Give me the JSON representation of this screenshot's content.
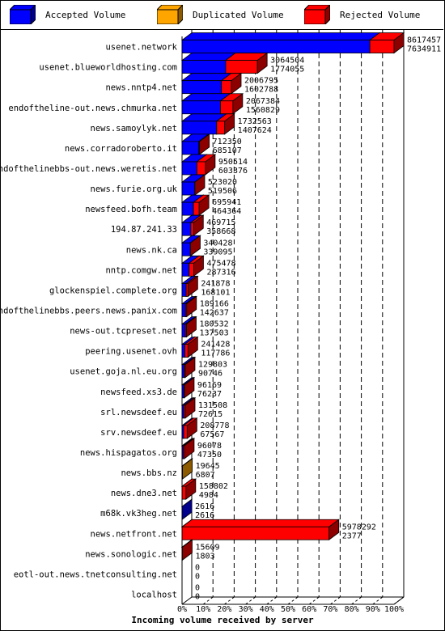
{
  "legend": {
    "accepted_label": "Accepted Volume",
    "duplicated_label": "Duplicated Volume",
    "rejected_label": "Rejected Volume"
  },
  "colors": {
    "accepted": "#0000ff",
    "duplicated": "#ffa500",
    "rejected": "#ff0000",
    "background": "#ffffff",
    "gridline": "#000000"
  },
  "chart_data": {
    "type": "bar",
    "orientation": "horizontal",
    "stacked": true,
    "three_d": true,
    "title": "Incoming volume received by server",
    "xlabel": "Incoming volume received by server",
    "x_ticks": [
      "0%",
      "10%",
      "20%",
      "30%",
      "40%",
      "50%",
      "60%",
      "70%",
      "80%",
      "90%",
      "100%"
    ],
    "xlim": [
      0,
      100
    ],
    "max_total": 8617457,
    "grid": "vertical dashed",
    "legend_position": "top",
    "series": [
      {
        "name": "Accepted Volume",
        "color": "#0000ff"
      },
      {
        "name": "Duplicated Volume",
        "color": "#ffa500"
      },
      {
        "name": "Rejected Volume",
        "color": "#ff0000"
      }
    ],
    "categories": [
      "usenet.network",
      "usenet.blueworldhosting.com",
      "news.nntp4.net",
      "endoftheline-out.news.chmurka.net",
      "news.samoylyk.net",
      "news.corradoroberto.it",
      "endofthelinebbs-out.news.weretis.net",
      "news.furie.org.uk",
      "newsfeed.bofh.team",
      "194.87.241.33",
      "news.nk.ca",
      "nntp.comgw.net",
      "glockenspiel.complete.org",
      "endofthelinebbs.peers.news.panix.com",
      "news-out.tcpreset.net",
      "peering.usenet.ovh",
      "usenet.goja.nl.eu.org",
      "newsfeed.xs3.de",
      "srl.newsdeef.eu",
      "srv.newsdeef.eu",
      "news.hispagatos.org",
      "news.bbs.nz",
      "news.dne3.net",
      "m68k.vk3heg.net",
      "news.netfront.net",
      "news.sonologic.net",
      "eotl-out.news.tnetconsulting.net",
      "localhost"
    ],
    "total_labels": [
      "8617457",
      "3064504",
      "2006795",
      "2067384",
      "1732563",
      "712350",
      "950514",
      "523020",
      "695941",
      "469715",
      "340428",
      "475478",
      "241878",
      "189166",
      "180532",
      "241428",
      "129803",
      "96169",
      "131508",
      "208778",
      "96078",
      "19645",
      "158802",
      "2616",
      "5978292",
      "15609",
      "0",
      "0"
    ],
    "accepted_labels": [
      "7634911",
      "1774055",
      "1602788",
      "1560829",
      "1407624",
      "685107",
      "603376",
      "519506",
      "464364",
      "358668",
      "339095",
      "287316",
      "168101",
      "142637",
      "137503",
      "117786",
      "90746",
      "76237",
      "72615",
      "67567",
      "47350",
      "6807",
      "4984",
      "2616",
      "2377",
      "1803",
      "0",
      "0"
    ],
    "totals": [
      8617457,
      3064504,
      2006795,
      2067384,
      1732563,
      712350,
      950514,
      523020,
      695941,
      469715,
      340428,
      475478,
      241878,
      189166,
      180532,
      241428,
      129803,
      96169,
      131508,
      208778,
      96078,
      19645,
      158802,
      2616,
      5978292,
      15609,
      0,
      0
    ],
    "accepted": [
      7634911,
      1774055,
      1602788,
      1560829,
      1407624,
      685107,
      603376,
      519506,
      464364,
      358668,
      339095,
      287316,
      168101,
      142637,
      137503,
      117786,
      90746,
      76237,
      72615,
      67567,
      47350,
      6807,
      4984,
      2616,
      2377,
      1803,
      0,
      0
    ],
    "duplicated": [
      0,
      0,
      0,
      0,
      0,
      0,
      0,
      0,
      0,
      0,
      0,
      0,
      0,
      0,
      0,
      0,
      0,
      0,
      0,
      0,
      0,
      12838,
      0,
      0,
      0,
      0,
      0,
      0
    ],
    "rejected": [
      982546,
      1290449,
      404007,
      506555,
      324939,
      27243,
      347138,
      3514,
      231577,
      111047,
      1333,
      188162,
      73777,
      46529,
      43029,
      123642,
      39057,
      19932,
      58893,
      141211,
      48728,
      0,
      153818,
      0,
      5975915,
      13806,
      0,
      0
    ]
  }
}
